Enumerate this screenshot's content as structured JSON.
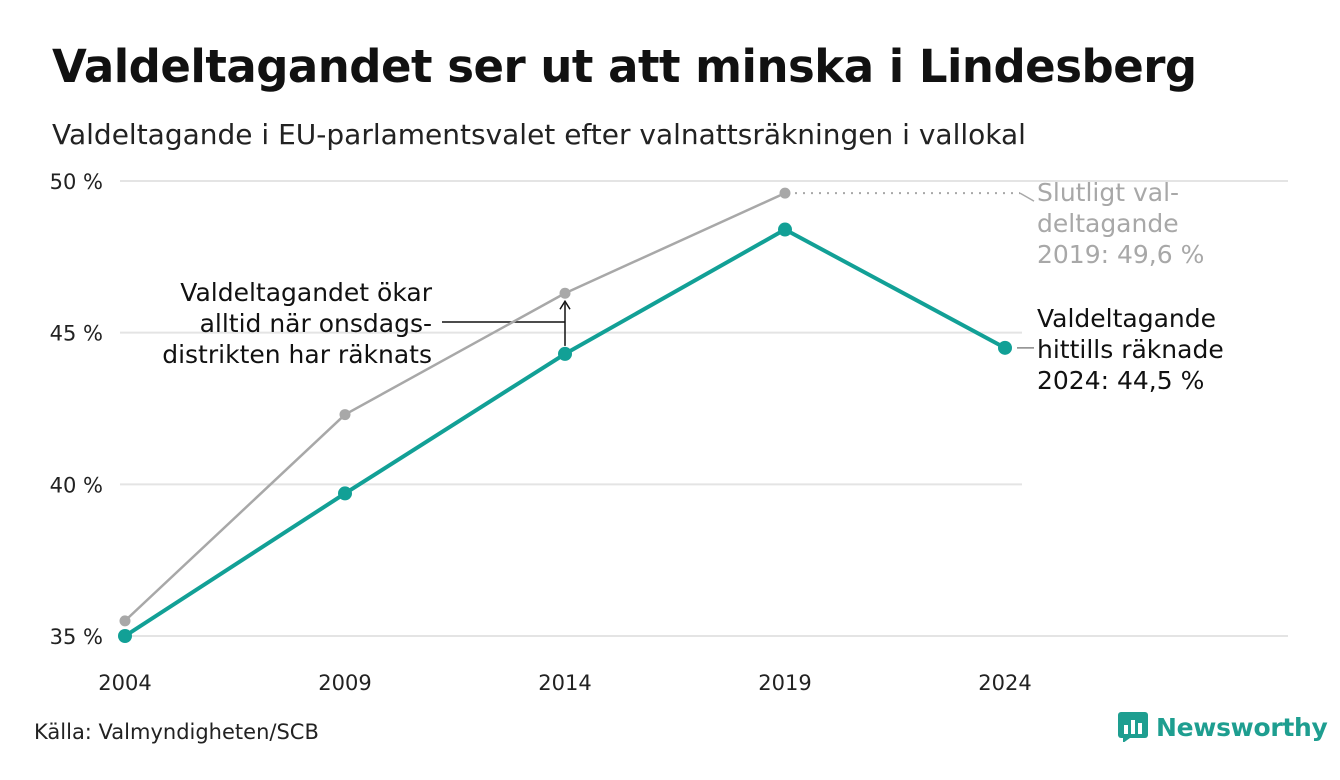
{
  "title": "Valdeltagandet ser ut att minska i Lindesberg",
  "subtitle": "Valdeltagande i EU-parlamentsvalet efter valnattsräkningen i vallokal",
  "source": "Källa: Valmyndigheten/SCB",
  "brand": {
    "name": "Newsworthy",
    "icon": "newsworthy-logo-icon"
  },
  "colors": {
    "counted": "#12a096",
    "final": "#a8a8a8",
    "grid": "#e4e4e4",
    "text": "#111111",
    "muted": "#a8a8a8"
  },
  "chart_data": {
    "type": "line",
    "x": [
      2004,
      2009,
      2014,
      2019,
      2024
    ],
    "xlabels": [
      "2004",
      "2009",
      "2014",
      "2019",
      "2024"
    ],
    "ylim": [
      35,
      50
    ],
    "yticks": [
      35,
      40,
      45,
      50
    ],
    "ytick_labels": [
      "35 %",
      "40 %",
      "45 %",
      "50 %"
    ],
    "grid": true,
    "series": [
      {
        "key": "final",
        "values": [
          35.5,
          42.3,
          46.3,
          49.6,
          null
        ]
      },
      {
        "key": "counted",
        "values": [
          35.0,
          39.7,
          44.3,
          48.4,
          44.5
        ]
      }
    ],
    "annotations": {
      "final": [
        "Slutligt val-",
        "deltagande",
        "2019: 49,6 %"
      ],
      "counted": [
        "Valdeltagande",
        "hittills räknade",
        "2024: 44,5 %"
      ],
      "wednesday": [
        "Valdeltagandet ökar",
        "alltid när onsdags-",
        "distrikten har räknats"
      ]
    }
  }
}
